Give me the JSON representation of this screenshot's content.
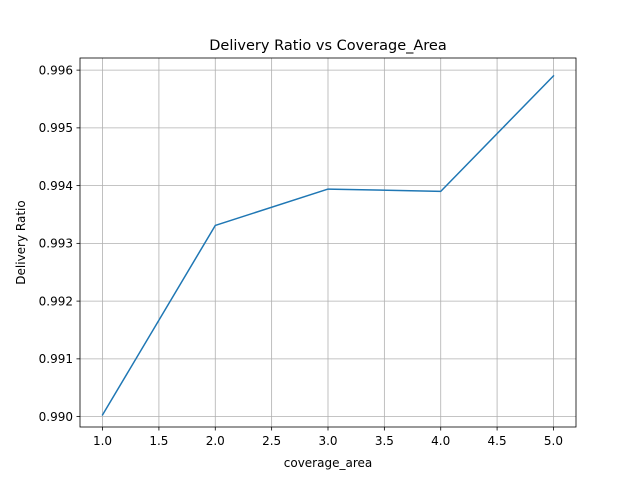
{
  "chart_data": {
    "type": "line",
    "title": "Delivery Ratio vs Coverage_Area",
    "xlabel": "coverage_area",
    "ylabel": "Delivery Ratio",
    "x": [
      1.0,
      2.0,
      3.0,
      4.0,
      5.0
    ],
    "series": [
      {
        "values": [
          0.99003,
          0.99331,
          0.99394,
          0.9939,
          0.9959
        ],
        "color": "#1f77b4"
      }
    ],
    "xlim": [
      0.8,
      5.2
    ],
    "ylim": [
      0.98982,
      0.99621
    ],
    "xticks": [
      1.0,
      1.5,
      2.0,
      2.5,
      3.0,
      3.5,
      4.0,
      4.5,
      5.0
    ],
    "xtick_labels": [
      "1.0",
      "1.5",
      "2.0",
      "2.5",
      "3.0",
      "3.5",
      "4.0",
      "4.5",
      "5.0"
    ],
    "yticks": [
      0.99,
      0.991,
      0.992,
      0.993,
      0.994,
      0.995,
      0.996
    ],
    "ytick_labels": [
      "0.990",
      "0.991",
      "0.992",
      "0.993",
      "0.994",
      "0.995",
      "0.996"
    ],
    "grid": true,
    "legend": "none"
  }
}
